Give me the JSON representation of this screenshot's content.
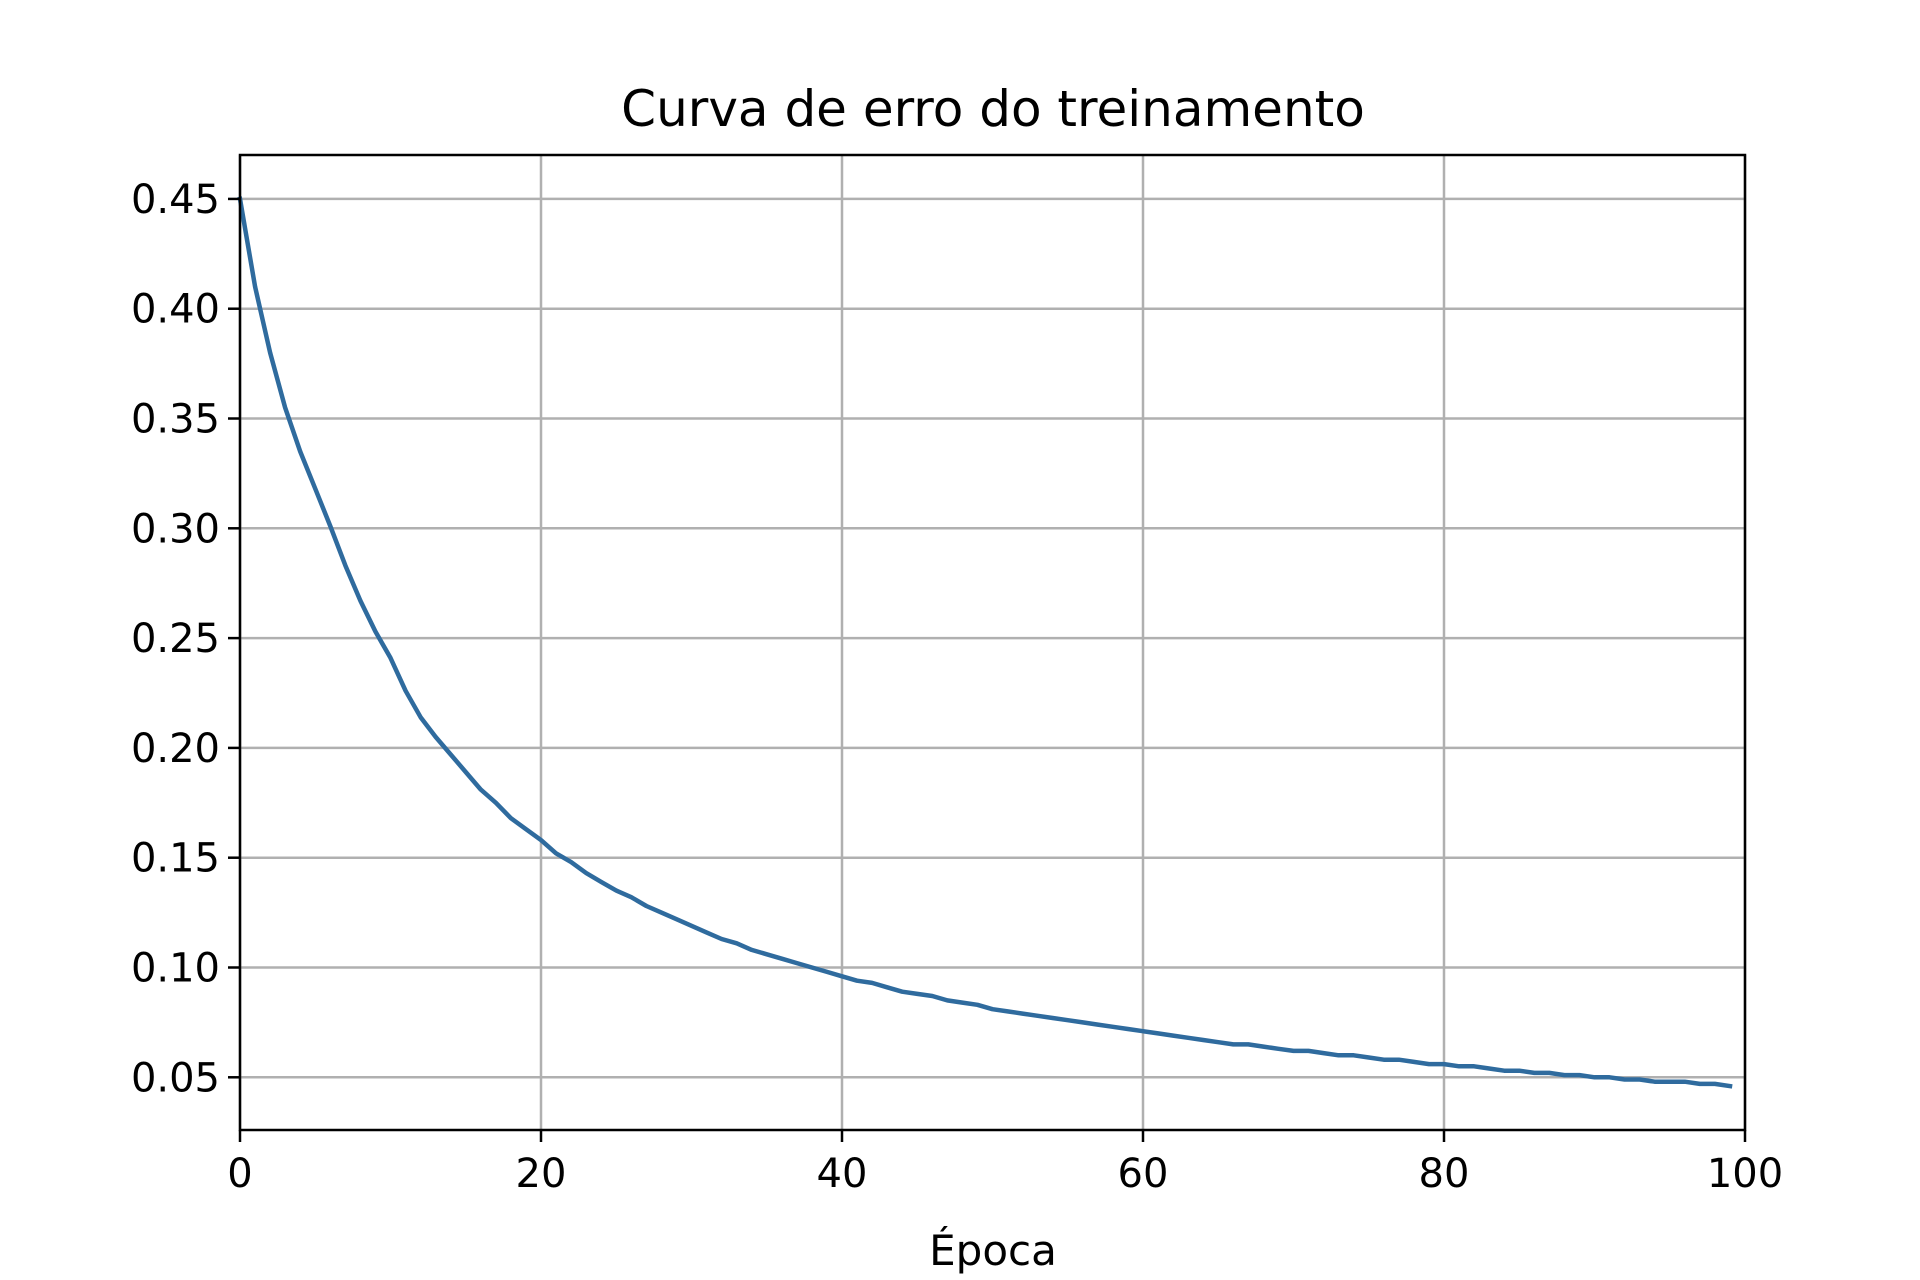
{
  "chart_data": {
    "type": "line",
    "title": "Curva de erro do treinamento",
    "xlabel": "Época",
    "ylabel": "",
    "xlim": [
      0,
      100
    ],
    "ylim": [
      0.026,
      0.47
    ],
    "xticks": [
      0,
      20,
      40,
      60,
      80,
      100
    ],
    "xtick_labels": [
      "0",
      "20",
      "40",
      "60",
      "80",
      "100"
    ],
    "yticks": [
      0.05,
      0.1,
      0.15,
      0.2,
      0.25,
      0.3,
      0.35,
      0.4,
      0.45
    ],
    "ytick_labels": [
      "0.05",
      "0.10",
      "0.15",
      "0.20",
      "0.25",
      "0.30",
      "0.35",
      "0.40",
      "0.45"
    ],
    "grid": true,
    "colors": {
      "line": "#2f6b9e",
      "grid": "#b0b0b0",
      "axes": "#000000"
    },
    "series": [
      {
        "x": [
          0,
          1,
          2,
          3,
          4,
          5,
          6,
          7,
          8,
          9,
          10,
          11,
          12,
          13,
          14,
          15,
          16,
          17,
          18,
          19,
          20,
          21,
          22,
          23,
          24,
          25,
          26,
          27,
          28,
          29,
          30,
          31,
          32,
          33,
          34,
          35,
          36,
          37,
          38,
          39,
          40,
          41,
          42,
          43,
          44,
          45,
          46,
          47,
          48,
          49,
          50,
          51,
          52,
          53,
          54,
          55,
          56,
          57,
          58,
          59,
          60,
          61,
          62,
          63,
          64,
          65,
          66,
          67,
          68,
          69,
          70,
          71,
          72,
          73,
          74,
          75,
          76,
          77,
          78,
          79,
          80,
          81,
          82,
          83,
          84,
          85,
          86,
          87,
          88,
          89,
          90,
          91,
          92,
          93,
          94,
          95,
          96,
          97,
          98,
          99
        ],
        "values": [
          0.45,
          0.41,
          0.38,
          0.355,
          0.335,
          0.318,
          0.301,
          0.283,
          0.267,
          0.253,
          0.241,
          0.226,
          0.214,
          0.205,
          0.197,
          0.189,
          0.181,
          0.175,
          0.168,
          0.163,
          0.158,
          0.152,
          0.148,
          0.143,
          0.139,
          0.135,
          0.132,
          0.128,
          0.125,
          0.122,
          0.119,
          0.116,
          0.113,
          0.111,
          0.108,
          0.106,
          0.104,
          0.102,
          0.1,
          0.098,
          0.096,
          0.094,
          0.093,
          0.091,
          0.089,
          0.088,
          0.087,
          0.085,
          0.084,
          0.083,
          0.081,
          0.08,
          0.079,
          0.078,
          0.077,
          0.076,
          0.075,
          0.074,
          0.073,
          0.072,
          0.071,
          0.07,
          0.069,
          0.068,
          0.067,
          0.066,
          0.065,
          0.065,
          0.064,
          0.063,
          0.062,
          0.062,
          0.061,
          0.06,
          0.06,
          0.059,
          0.058,
          0.058,
          0.057,
          0.056,
          0.056,
          0.055,
          0.055,
          0.054,
          0.053,
          0.053,
          0.052,
          0.052,
          0.051,
          0.051,
          0.05,
          0.05,
          0.049,
          0.049,
          0.048,
          0.048,
          0.048,
          0.047,
          0.047,
          0.046
        ]
      }
    ]
  }
}
